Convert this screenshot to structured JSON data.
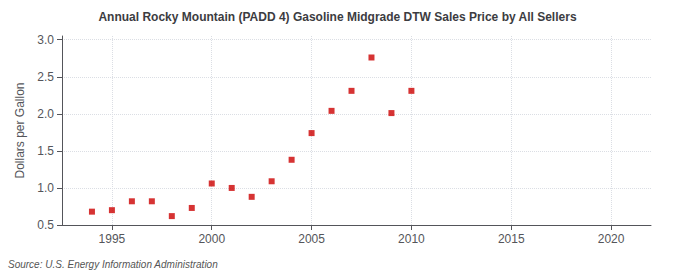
{
  "chart_data": {
    "type": "scatter",
    "title": "Annual Rocky Mountain (PADD 4) Gasoline Midgrade DTW Sales Price by All Sellers",
    "ylabel": "Dollars per Gallon",
    "annotation": "Source: U.S. Energy Information Administration",
    "x": [
      1994,
      1995,
      1996,
      1997,
      1998,
      1999,
      2000,
      2001,
      2002,
      2003,
      2004,
      2005,
      2006,
      2007,
      2008,
      2009,
      2010
    ],
    "values": [
      0.68,
      0.7,
      0.82,
      0.82,
      0.62,
      0.73,
      1.06,
      1.0,
      0.88,
      1.09,
      1.38,
      1.74,
      2.04,
      2.31,
      2.76,
      2.01,
      2.31
    ],
    "color": "#cc0000",
    "marker": "square",
    "xlim": [
      1992.5,
      2022
    ],
    "ylim": [
      0.5,
      3.05
    ],
    "xticks": [
      1995,
      2000,
      2005,
      2010,
      2015,
      2020
    ],
    "yticks": [
      0.5,
      {
        "value": 1.0,
        "label": "1.0"
      },
      1.5,
      {
        "value": 2.0,
        "label": "2.0"
      },
      2.5,
      {
        "value": 3.0,
        "label": "3.0"
      }
    ],
    "grid": true
  }
}
